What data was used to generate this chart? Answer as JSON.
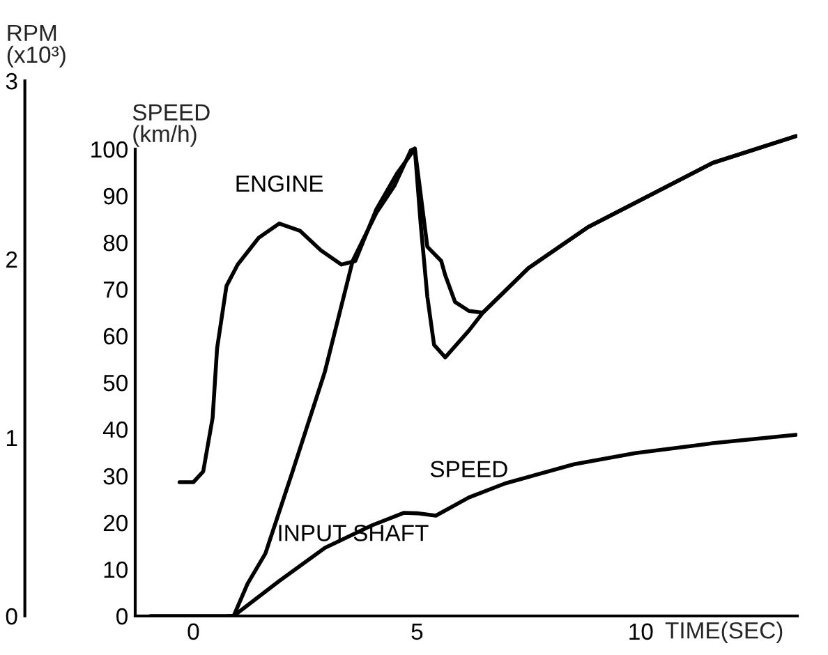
{
  "chart_data": {
    "type": "line",
    "xlabel": "TIME(SEC)",
    "ylabel": "SPEED\n(km/h)",
    "y2label": "RPM\n(x10³)",
    "xlim": [
      -1.3,
      13.5
    ],
    "xticks": [
      0,
      5,
      10
    ],
    "ylim": [
      0,
      100
    ],
    "yticks": [
      0,
      10,
      20,
      30,
      40,
      50,
      60,
      70,
      80,
      90,
      100
    ],
    "y2lim": [
      0,
      3
    ],
    "y2ticks": [
      0,
      1,
      2,
      3
    ],
    "grid": false,
    "line_style": "solid",
    "series": [
      {
        "name": "ENGINE",
        "color": "#000000",
        "axis": "y2",
        "x": [
          -0.31,
          0.0,
          0.22,
          0.43,
          0.53,
          0.74,
          0.99,
          1.46,
          1.92,
          2.38,
          2.85,
          3.31,
          3.62,
          4.09,
          4.55,
          4.95,
          5.23,
          5.54,
          5.63,
          5.85,
          6.16,
          6.47,
          7.49,
          8.82,
          10.06,
          11.61,
          13.47
        ],
        "values": [
          0.75,
          0.75,
          0.81,
          1.11,
          1.5,
          1.85,
          1.97,
          2.12,
          2.2,
          2.16,
          2.05,
          1.97,
          1.99,
          2.28,
          2.48,
          2.62,
          2.07,
          1.99,
          1.91,
          1.76,
          1.71,
          1.7,
          1.95,
          2.18,
          2.34,
          2.54,
          2.69
        ]
      },
      {
        "name": "INPUT SHAFT",
        "color": "#000000",
        "axis": "y2",
        "x": [
          -0.96,
          0.77,
          0.9,
          1.21,
          1.61,
          2.23,
          2.94,
          3.56,
          4.09,
          4.49,
          4.86,
          4.95,
          5.08,
          5.23,
          5.38,
          5.63,
          6.16,
          6.47,
          7.49,
          8.82,
          10.06,
          11.61,
          13.47
        ],
        "values": [
          0,
          0,
          0,
          0.18,
          0.35,
          0.82,
          1.37,
          1.99,
          2.26,
          2.41,
          2.61,
          2.62,
          2.2,
          1.79,
          1.52,
          1.45,
          1.6,
          1.7,
          1.95,
          2.18,
          2.34,
          2.54,
          2.69
        ]
      },
      {
        "name": "SPEED",
        "color": "#000000",
        "x": [
          0.77,
          0.9,
          1.92,
          2.94,
          3.99,
          4.71,
          5.0,
          5.42,
          6.16,
          6.97,
          8.51,
          9.88,
          11.61,
          13.47
        ],
        "values": [
          0,
          0,
          7.5,
          14.6,
          19.4,
          22.1,
          22,
          21.5,
          25.4,
          28.4,
          32.5,
          34.9,
          37.0,
          38.8
        ]
      }
    ]
  }
}
